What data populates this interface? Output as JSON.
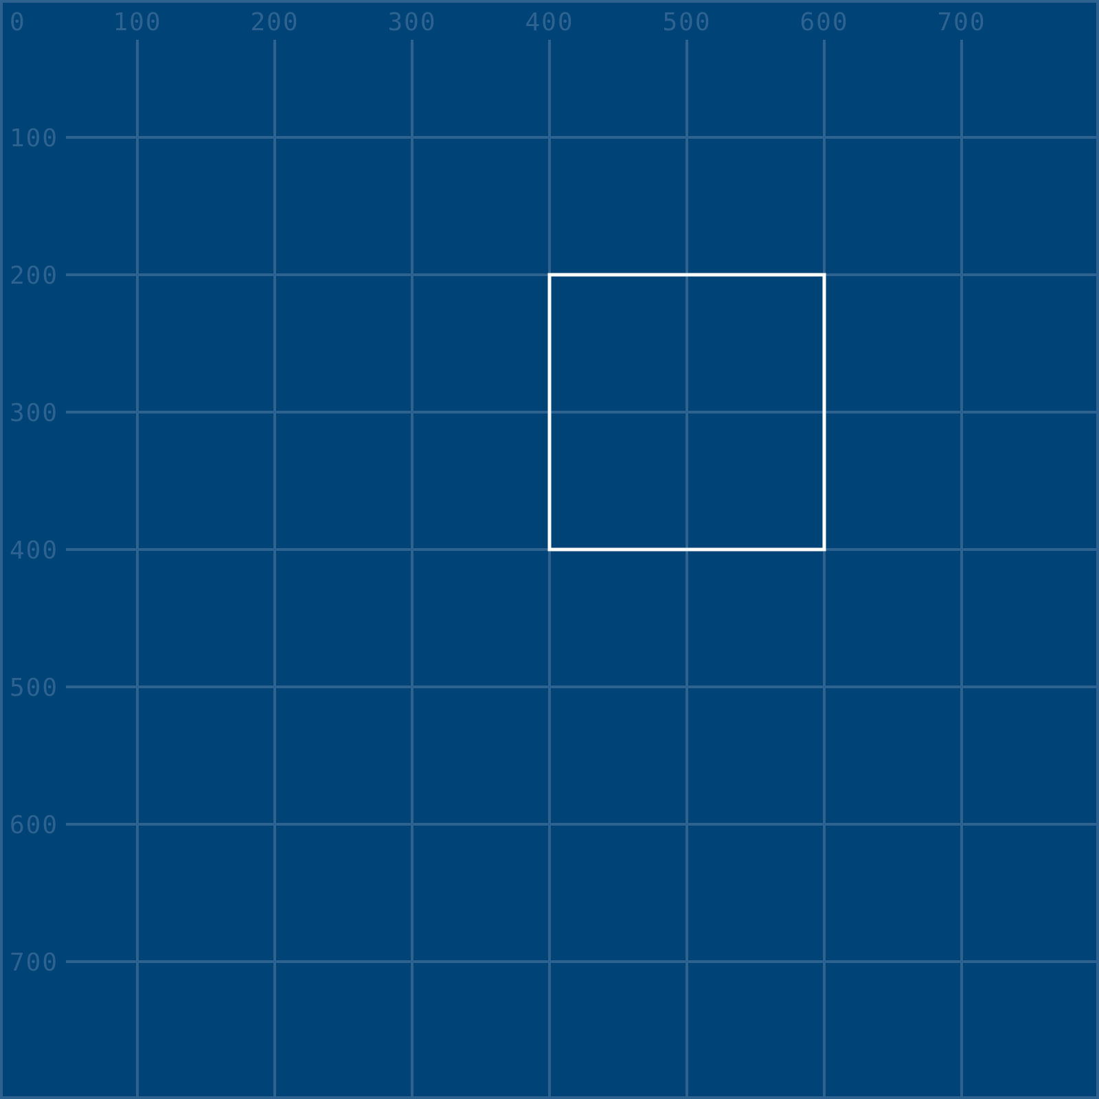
{
  "colors": {
    "background": "#004377",
    "grid": "#2e6391",
    "label": "#2e6391",
    "border": "#2e6391",
    "rect": "#ffffff"
  },
  "grid": {
    "x_max": 800,
    "y_max": 800,
    "step": 100,
    "x_labels": [
      "0",
      "100",
      "200",
      "300",
      "400",
      "500",
      "600",
      "700"
    ],
    "y_labels": [
      "100",
      "200",
      "300",
      "400",
      "500",
      "600",
      "700"
    ]
  },
  "rectangle": {
    "x": 400,
    "y": 200,
    "width": 200,
    "height": 200
  }
}
